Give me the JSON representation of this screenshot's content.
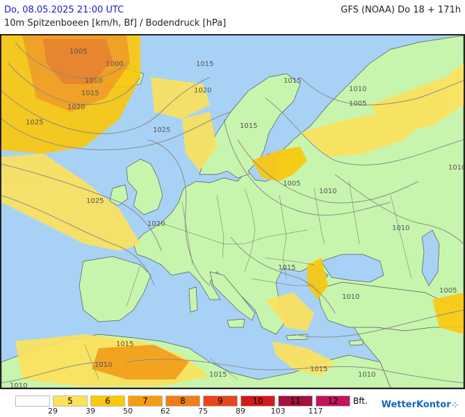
{
  "header": {
    "datetime": "Do, 08.05.2025 21:00 UTC",
    "model_run": "GFS (NOAA) Do 18 + 171h",
    "parameter": "10m Spitzenboeen [km/h, Bf] / Bodendruck [hPa]"
  },
  "map": {
    "sea_color": "#a8d2f5",
    "land_color": "#c8f5ae",
    "isobar_color": "#8a8a8a",
    "border_color": "#666666",
    "isobar_labels": [
      "1005",
      "1000",
      "1010",
      "1015",
      "1020",
      "1025",
      "1015",
      "1020",
      "1025",
      "1015",
      "1025",
      "1015",
      "1010",
      "1005",
      "1005",
      "1010",
      "1010",
      "1020",
      "1015",
      "1010",
      "1005",
      "1015",
      "1010",
      "1015",
      "1015",
      "1010",
      "1010",
      "1010"
    ]
  },
  "legend": {
    "bft_labels": [
      "5",
      "6",
      "7",
      "8",
      "9",
      "10",
      "11",
      "12"
    ],
    "unit": "Bft.",
    "kmh_ticks": [
      "29",
      "39",
      "50",
      "62",
      "75",
      "89",
      "103",
      "117"
    ],
    "colors": [
      "#ffffff",
      "#fde25a",
      "#fcc80a",
      "#f79c12",
      "#f07d1a",
      "#e5461c",
      "#d21a1a",
      "#a3123a",
      "#c2145c"
    ]
  },
  "logo": {
    "text": "WetterKontor",
    "icon": "dots-icon"
  }
}
